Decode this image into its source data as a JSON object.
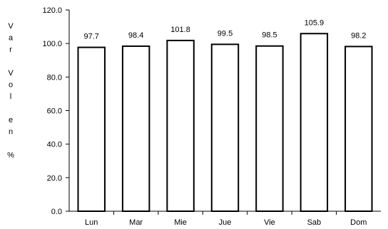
{
  "chart_data": {
    "type": "bar",
    "title": "",
    "xlabel": "",
    "ylabel": "Var Vol en %",
    "ylabel_lines": [
      "V",
      "a",
      "r",
      "",
      "V",
      "o",
      "l",
      "",
      "e",
      "n",
      "",
      "%"
    ],
    "categories": [
      "Lun",
      "Mar",
      "Mie",
      "Jue",
      "Vie",
      "Sab",
      "Dom"
    ],
    "values": [
      97.7,
      98.4,
      101.8,
      99.5,
      98.5,
      105.9,
      98.2
    ],
    "value_labels": [
      "97.7",
      "98.4",
      "101.8",
      "99.5",
      "98.5",
      "105.9",
      "98.2"
    ],
    "ylim": [
      0,
      120
    ],
    "yticks": [
      0,
      20,
      40,
      60,
      80,
      100,
      120
    ],
    "ytick_labels": [
      "0.0",
      "20.0",
      "40.0",
      "60.0",
      "80.0",
      "100.0",
      "120.0"
    ],
    "grid": false,
    "legend": "none",
    "bar_fill": "#ffffff",
    "bar_stroke": "#000000",
    "axis_color": "#000000"
  }
}
